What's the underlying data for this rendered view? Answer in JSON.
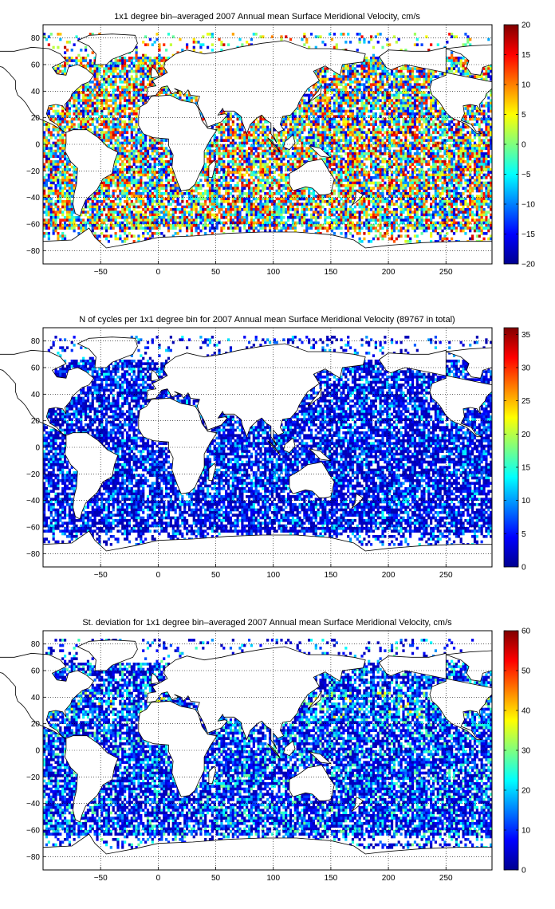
{
  "panels": [
    {
      "title": "1x1 degree bin–averaged 2007 Annual mean Surface Meridional Velocity, cm/s",
      "colorbar_ticks": [
        "20",
        "15",
        "10",
        "5",
        "0",
        "−5",
        "−10",
        "−15",
        "−20"
      ],
      "colorbar_range": [
        -20,
        20
      ],
      "field": "velocity"
    },
    {
      "title": "N of cycles per 1x1 degree bin for 2007 Annual mean Surface Meridional Velocity (89767 in total)",
      "colorbar_ticks": [
        "35",
        "30",
        "25",
        "20",
        "15",
        "10",
        "5",
        "0"
      ],
      "colorbar_range": [
        0,
        36
      ],
      "field": "count"
    },
    {
      "title": "St. deviation for 1x1 degree bin–averaged 2007 Annual mean Surface Meridional Velocity, cm/s",
      "colorbar_ticks": [
        "60",
        "50",
        "40",
        "30",
        "20",
        "10",
        "0"
      ],
      "colorbar_range": [
        0,
        60
      ],
      "field": "stdev"
    }
  ],
  "axes": {
    "x_ticks": [
      "−50",
      "0",
      "50",
      "100",
      "150",
      "200",
      "250"
    ],
    "y_ticks": [
      "80",
      "60",
      "40",
      "20",
      "0",
      "−20",
      "−40",
      "−60",
      "−80"
    ],
    "lon_range": [
      -100,
      290
    ],
    "lat_range": [
      -90,
      90
    ]
  },
  "colors": {
    "colormap": "jet",
    "land": "#ffffff",
    "coastline": "#000000",
    "grid": "#000000"
  }
}
